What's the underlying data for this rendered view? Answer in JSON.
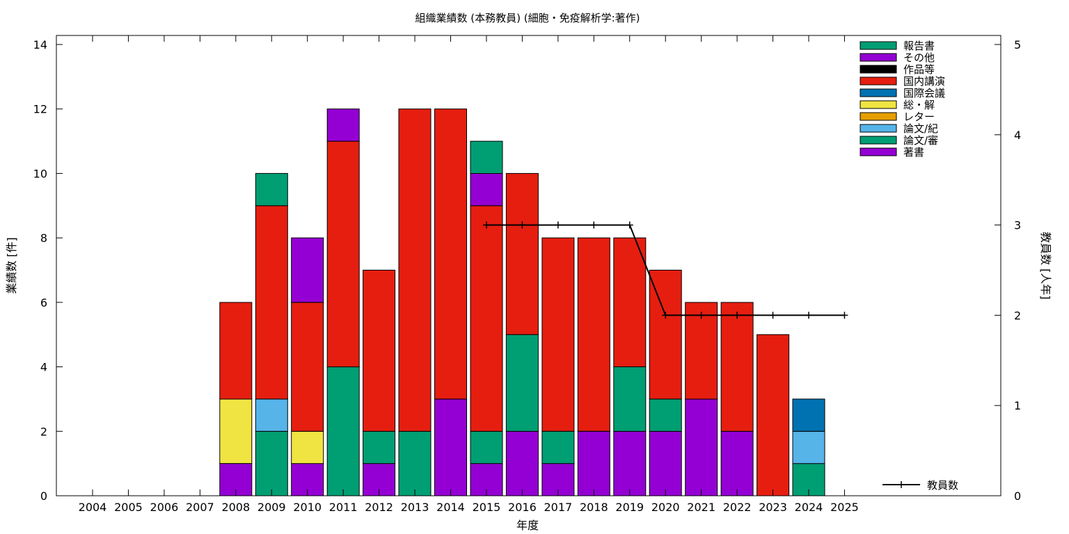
{
  "chart_data": {
    "type": "bar",
    "stacked": true,
    "title": "組織業績数 (本務教員) (細胞・免疫解析学:著作)",
    "xlabel": "年度",
    "ylabel": "業績数 [件]",
    "y2label": "教員数 [人年]",
    "ylim": [
      0,
      14
    ],
    "y2lim": [
      0,
      5
    ],
    "yticks": [
      0,
      2,
      4,
      6,
      8,
      10,
      12,
      14
    ],
    "y2ticks": [
      0,
      1,
      2,
      3,
      4,
      5
    ],
    "grid": false,
    "legend_position": "top-right",
    "categories": [
      "2004",
      "2005",
      "2006",
      "2007",
      "2008",
      "2009",
      "2010",
      "2011",
      "2012",
      "2013",
      "2014",
      "2015",
      "2016",
      "2017",
      "2018",
      "2019",
      "2020",
      "2021",
      "2022",
      "2023",
      "2024",
      "2025"
    ],
    "series": [
      {
        "name": "著書",
        "color": "#9400d3",
        "values": [
          0,
          0,
          0,
          0,
          1,
          0,
          1,
          0,
          1,
          0,
          3,
          1,
          2,
          1,
          2,
          2,
          2,
          3,
          2,
          0,
          0,
          0
        ]
      },
      {
        "name": "論文/審",
        "color": "#009e73",
        "values": [
          0,
          0,
          0,
          0,
          0,
          2,
          0,
          4,
          1,
          2,
          0,
          1,
          3,
          1,
          0,
          2,
          1,
          0,
          0,
          0,
          1,
          0
        ]
      },
      {
        "name": "論文/紀",
        "color": "#56b4e9",
        "values": [
          0,
          0,
          0,
          0,
          0,
          1,
          0,
          0,
          0,
          0,
          0,
          0,
          0,
          0,
          0,
          0,
          0,
          0,
          0,
          0,
          1,
          0
        ]
      },
      {
        "name": "レター",
        "color": "#e69f00",
        "values": [
          0,
          0,
          0,
          0,
          0,
          0,
          0,
          0,
          0,
          0,
          0,
          0,
          0,
          0,
          0,
          0,
          0,
          0,
          0,
          0,
          0,
          0
        ]
      },
      {
        "name": "総・解",
        "color": "#f0e442",
        "values": [
          0,
          0,
          0,
          0,
          2,
          0,
          1,
          0,
          0,
          0,
          0,
          0,
          0,
          0,
          0,
          0,
          0,
          0,
          0,
          0,
          0,
          0
        ]
      },
      {
        "name": "国際会議",
        "color": "#0072b2",
        "values": [
          0,
          0,
          0,
          0,
          0,
          0,
          0,
          0,
          0,
          0,
          0,
          0,
          0,
          0,
          0,
          0,
          0,
          0,
          0,
          0,
          1,
          0
        ]
      },
      {
        "name": "国内講演",
        "color": "#e51e10",
        "values": [
          0,
          0,
          0,
          0,
          3,
          6,
          4,
          7,
          5,
          10,
          9,
          7,
          5,
          6,
          6,
          4,
          4,
          3,
          4,
          5,
          0,
          0
        ]
      },
      {
        "name": "作品等",
        "color": "#000000",
        "values": [
          0,
          0,
          0,
          0,
          0,
          0,
          0,
          0,
          0,
          0,
          0,
          0,
          0,
          0,
          0,
          0,
          0,
          0,
          0,
          0,
          0,
          0
        ]
      },
      {
        "name": "その他",
        "color": "#9400d3",
        "values": [
          0,
          0,
          0,
          0,
          0,
          0,
          2,
          1,
          0,
          0,
          0,
          1,
          0,
          0,
          0,
          0,
          0,
          0,
          0,
          0,
          0,
          0
        ]
      },
      {
        "name": "報告書",
        "color": "#009e73",
        "values": [
          0,
          0,
          0,
          0,
          0,
          1,
          0,
          0,
          0,
          0,
          0,
          1,
          0,
          0,
          0,
          0,
          0,
          0,
          0,
          0,
          0,
          0
        ]
      }
    ],
    "line": {
      "name": "教員数",
      "axis": "y2",
      "color": "#000000",
      "x": [
        "2015",
        "2016",
        "2017",
        "2018",
        "2019",
        "2020",
        "2021",
        "2022",
        "2023",
        "2024",
        "2025"
      ],
      "values": [
        3,
        3,
        3,
        3,
        3,
        2,
        2,
        2,
        2,
        2,
        2
      ]
    }
  }
}
